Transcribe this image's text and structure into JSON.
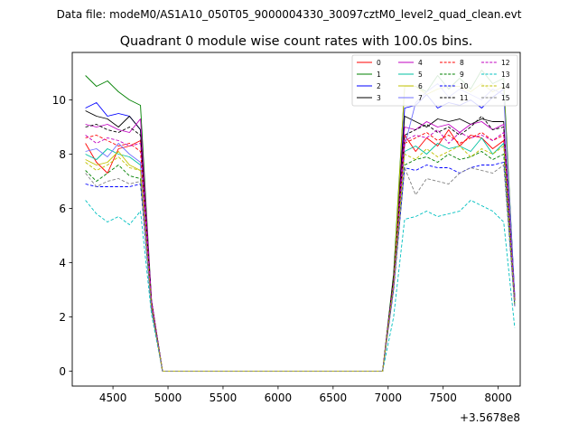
{
  "figure": {
    "suptitle": "Data file: modeM0/AS1A10_050T05_9000004330_30097cztM0_level2_quad_clean.evt"
  },
  "chart_data": {
    "type": "line",
    "title": "Quadrant 0 module wise count rates with 100.0s bins.",
    "xlabel": "",
    "ylabel": "",
    "x_offset_label": "+3.5678e8",
    "xlim": [
      4130,
      8200
    ],
    "ylim": [
      -0.55,
      11.75
    ],
    "xticks": [
      4500,
      5000,
      5500,
      6000,
      6500,
      7000,
      7500,
      8000
    ],
    "yticks": [
      0,
      2,
      4,
      6,
      8,
      10
    ],
    "grid": false,
    "legend_position": "top-right",
    "x": [
      4250,
      4350,
      4450,
      4550,
      4650,
      4750,
      4850,
      4950,
      5050,
      5150,
      5250,
      5350,
      5450,
      5550,
      5650,
      5750,
      5850,
      5950,
      6050,
      6150,
      6250,
      6350,
      6450,
      6550,
      6650,
      6750,
      6850,
      6950,
      7050,
      7150,
      7250,
      7350,
      7450,
      7550,
      7650,
      7750,
      7850,
      7950,
      8050,
      8150
    ],
    "series": [
      {
        "name": "0",
        "color": "#ff0000",
        "dash": "solid",
        "values": [
          8.4,
          7.7,
          7.3,
          8.2,
          8.3,
          8.5,
          2.5,
          0,
          0,
          0,
          0,
          0,
          0,
          0,
          0,
          0,
          0,
          0,
          0,
          0,
          0,
          0,
          0,
          0,
          0,
          0,
          0,
          0,
          3.3,
          8.7,
          8.1,
          8.6,
          8.3,
          8.9,
          8.3,
          8.7,
          8.6,
          8.2,
          8.5,
          2.6
        ]
      },
      {
        "name": "1",
        "color": "#008000",
        "dash": "solid",
        "values": [
          10.9,
          10.5,
          10.7,
          10.3,
          10.0,
          9.8,
          2.6,
          0,
          0,
          0,
          0,
          0,
          0,
          0,
          0,
          0,
          0,
          0,
          0,
          0,
          0,
          0,
          0,
          0,
          0,
          0,
          0,
          0,
          3.6,
          10.5,
          10.5,
          10.3,
          10.9,
          10.4,
          10.8,
          10.4,
          11.1,
          10.6,
          10.8,
          2.7
        ]
      },
      {
        "name": "2",
        "color": "#0000ff",
        "dash": "solid",
        "values": [
          9.7,
          9.9,
          9.4,
          9.5,
          9.4,
          8.9,
          2.6,
          0,
          0,
          0,
          0,
          0,
          0,
          0,
          0,
          0,
          0,
          0,
          0,
          0,
          0,
          0,
          0,
          0,
          0,
          0,
          0,
          0,
          3.4,
          9.7,
          9.8,
          10.2,
          9.7,
          9.9,
          9.8,
          10.0,
          9.7,
          10.1,
          10.4,
          2.8
        ]
      },
      {
        "name": "3",
        "color": "#000000",
        "dash": "solid",
        "values": [
          9.6,
          9.4,
          9.3,
          9.0,
          9.4,
          8.9,
          2.6,
          0,
          0,
          0,
          0,
          0,
          0,
          0,
          0,
          0,
          0,
          0,
          0,
          0,
          0,
          0,
          0,
          0,
          0,
          0,
          0,
          0,
          3.5,
          9.4,
          9.2,
          9.0,
          9.3,
          9.2,
          9.3,
          9.1,
          9.3,
          9.2,
          9.2,
          2.7
        ]
      },
      {
        "name": "4",
        "color": "#c000c0",
        "dash": "solid",
        "values": [
          9.1,
          9.0,
          9.1,
          8.9,
          8.8,
          9.3,
          2.6,
          0,
          0,
          0,
          0,
          0,
          0,
          0,
          0,
          0,
          0,
          0,
          0,
          0,
          0,
          0,
          0,
          0,
          0,
          0,
          0,
          0,
          3.4,
          9.0,
          8.9,
          9.2,
          9.0,
          9.1,
          8.8,
          9.1,
          9.2,
          8.9,
          9.1,
          2.7
        ]
      },
      {
        "name": "5",
        "color": "#00c0a0",
        "dash": "solid",
        "values": [
          8.0,
          7.8,
          8.2,
          8.0,
          7.9,
          7.6,
          2.4,
          0,
          0,
          0,
          0,
          0,
          0,
          0,
          0,
          0,
          0,
          0,
          0,
          0,
          0,
          0,
          0,
          0,
          0,
          0,
          0,
          0,
          3.2,
          8.1,
          8.3,
          8.0,
          8.4,
          8.2,
          8.3,
          8.1,
          8.6,
          8.0,
          8.4,
          2.5
        ]
      },
      {
        "name": "6",
        "color": "#c0c000",
        "dash": "solid",
        "values": [
          7.8,
          7.6,
          7.7,
          8.1,
          7.6,
          7.4,
          2.4,
          0,
          0,
          0,
          0,
          0,
          0,
          0,
          0,
          0,
          0,
          0,
          0,
          0,
          0,
          0,
          0,
          0,
          0,
          0,
          0,
          0,
          3.3,
          10.5,
          10.5,
          10.2,
          10.4,
          10.5,
          10.5,
          10.3,
          10.6,
          10.3,
          10.5,
          2.6
        ]
      },
      {
        "name": "7",
        "color": "#7070ff",
        "dash": "solid",
        "values": [
          8.1,
          8.2,
          7.9,
          8.4,
          8.0,
          7.7,
          2.4,
          0,
          0,
          0,
          0,
          0,
          0,
          0,
          0,
          0,
          0,
          0,
          0,
          0,
          0,
          0,
          0,
          0,
          0,
          0,
          0,
          0,
          3.3,
          8.3,
          9.9,
          10.3,
          10.6,
          10.1,
          10.4,
          10.2,
          10.0,
          10.4,
          10.2,
          2.7
        ]
      },
      {
        "name": "8",
        "color": "#ff0000",
        "dash": "dashed",
        "values": [
          8.6,
          8.7,
          8.5,
          8.3,
          8.4,
          8.1,
          2.5,
          0,
          0,
          0,
          0,
          0,
          0,
          0,
          0,
          0,
          0,
          0,
          0,
          0,
          0,
          0,
          0,
          0,
          0,
          0,
          0,
          0,
          3.3,
          8.4,
          8.6,
          8.8,
          8.5,
          8.7,
          8.4,
          8.6,
          8.8,
          8.5,
          8.7,
          2.6
        ]
      },
      {
        "name": "9",
        "color": "#008000",
        "dash": "dashed",
        "values": [
          7.4,
          7.0,
          7.3,
          7.6,
          7.2,
          7.1,
          2.3,
          0,
          0,
          0,
          0,
          0,
          0,
          0,
          0,
          0,
          0,
          0,
          0,
          0,
          0,
          0,
          0,
          0,
          0,
          0,
          0,
          0,
          3.1,
          7.6,
          7.8,
          7.9,
          7.7,
          8.0,
          7.8,
          7.9,
          8.1,
          7.8,
          8.0,
          2.4
        ]
      },
      {
        "name": "10",
        "color": "#0000ff",
        "dash": "dashed",
        "values": [
          6.9,
          6.8,
          6.8,
          6.8,
          6.8,
          6.9,
          2.3,
          0,
          0,
          0,
          0,
          0,
          0,
          0,
          0,
          0,
          0,
          0,
          0,
          0,
          0,
          0,
          0,
          0,
          0,
          0,
          0,
          0,
          3.0,
          7.5,
          7.4,
          7.6,
          7.5,
          7.5,
          7.3,
          7.5,
          7.6,
          7.6,
          7.7,
          2.4
        ]
      },
      {
        "name": "11",
        "color": "#000000",
        "dash": "dashed",
        "values": [
          9.0,
          9.1,
          8.9,
          8.8,
          9.0,
          8.7,
          2.5,
          0,
          0,
          0,
          0,
          0,
          0,
          0,
          0,
          0,
          0,
          0,
          0,
          0,
          0,
          0,
          0,
          0,
          0,
          0,
          0,
          0,
          3.4,
          8.7,
          8.9,
          9.1,
          8.8,
          9.0,
          8.7,
          9.0,
          9.4,
          8.9,
          9.0,
          2.6
        ]
      },
      {
        "name": "12",
        "color": "#c000c0",
        "dash": "dashed",
        "values": [
          8.7,
          8.4,
          8.6,
          8.5,
          8.3,
          8.4,
          2.5,
          0,
          0,
          0,
          0,
          0,
          0,
          0,
          0,
          0,
          0,
          0,
          0,
          0,
          0,
          0,
          0,
          0,
          0,
          0,
          0,
          0,
          3.3,
          8.5,
          8.7,
          8.6,
          8.9,
          8.4,
          8.8,
          8.6,
          8.7,
          8.5,
          8.8,
          2.6
        ]
      },
      {
        "name": "13",
        "color": "#00c0c0",
        "dash": "dashed",
        "values": [
          6.3,
          5.8,
          5.5,
          5.7,
          5.4,
          5.9,
          2.1,
          0,
          0,
          0,
          0,
          0,
          0,
          0,
          0,
          0,
          0,
          0,
          0,
          0,
          0,
          0,
          0,
          0,
          0,
          0,
          0,
          0,
          2.0,
          5.6,
          5.7,
          5.9,
          5.7,
          5.8,
          5.9,
          6.3,
          6.1,
          5.9,
          5.5,
          1.6
        ]
      },
      {
        "name": "14",
        "color": "#c0c000",
        "dash": "dashed",
        "values": [
          7.7,
          7.4,
          7.6,
          7.9,
          7.5,
          7.4,
          2.4,
          0,
          0,
          0,
          0,
          0,
          0,
          0,
          0,
          0,
          0,
          0,
          0,
          0,
          0,
          0,
          0,
          0,
          0,
          0,
          0,
          0,
          3.2,
          8.0,
          7.8,
          8.2,
          7.9,
          8.1,
          8.3,
          7.9,
          8.2,
          8.0,
          8.3,
          2.5
        ]
      },
      {
        "name": "15",
        "color": "#808080",
        "dash": "dashed",
        "values": [
          7.3,
          6.8,
          7.0,
          7.1,
          6.9,
          7.0,
          2.3,
          0,
          0,
          0,
          0,
          0,
          0,
          0,
          0,
          0,
          0,
          0,
          0,
          0,
          0,
          0,
          0,
          0,
          0,
          0,
          0,
          0,
          3.0,
          7.5,
          6.5,
          7.1,
          7.0,
          6.9,
          7.3,
          7.5,
          7.4,
          7.3,
          7.6,
          2.4
        ]
      }
    ]
  }
}
